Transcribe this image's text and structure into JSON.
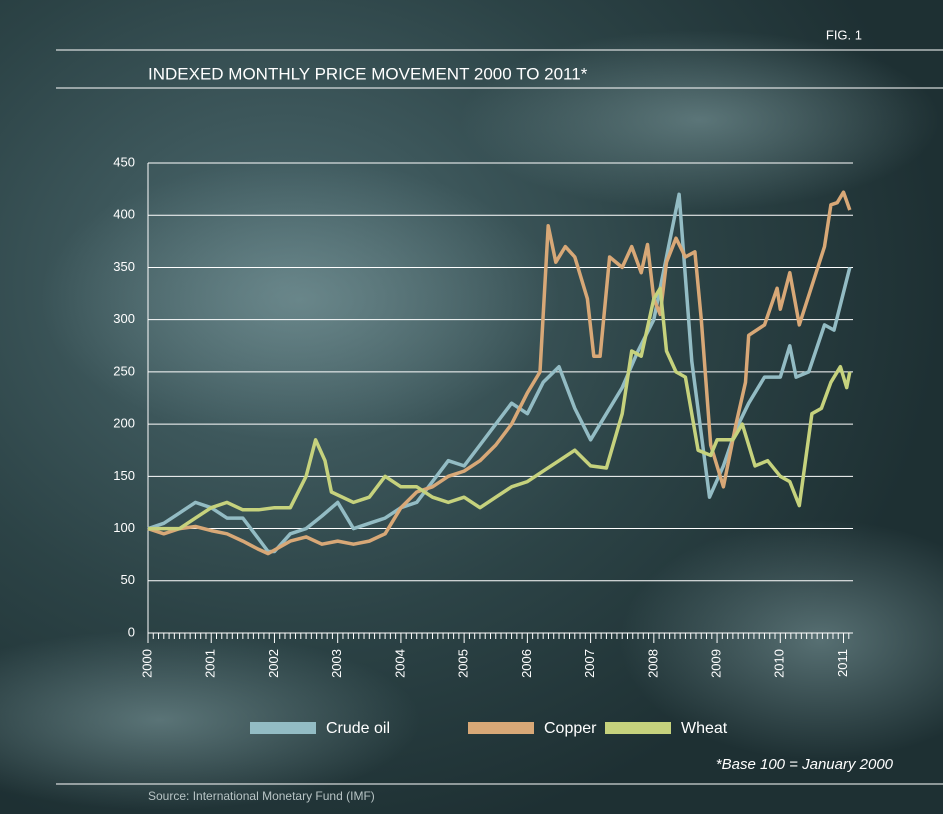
{
  "chart_data": {
    "type": "line",
    "figure_label": "FIG. 1",
    "title": "INDEXED MONTHLY PRICE MOVEMENT 2000 TO 2011*",
    "footnote": "*Base 100 = January 2000",
    "source": "Source: International Monetary Fund (IMF)",
    "xlim": [
      2000,
      2011.15
    ],
    "xticks": [
      2000,
      2001,
      2002,
      2003,
      2004,
      2005,
      2006,
      2007,
      2008,
      2009,
      2010,
      2011
    ],
    "ylim": [
      0,
      450
    ],
    "yticks": [
      0,
      50,
      100,
      150,
      200,
      250,
      300,
      350,
      400,
      450
    ],
    "grid": true,
    "series": [
      {
        "name": "Crude oil",
        "color": "#93bcc4",
        "x": [
          2000,
          2000.25,
          2000.5,
          2000.75,
          2001,
          2001.25,
          2001.5,
          2001.75,
          2001.9,
          2002,
          2002.25,
          2002.5,
          2002.75,
          2003,
          2003.25,
          2003.5,
          2003.75,
          2004,
          2004.25,
          2004.5,
          2004.75,
          2005,
          2005.25,
          2005.5,
          2005.75,
          2006,
          2006.25,
          2006.5,
          2006.75,
          2007,
          2007.25,
          2007.5,
          2007.75,
          2008,
          2008.2,
          2008.4,
          2008.6,
          2008.88,
          2009.1,
          2009.3,
          2009.5,
          2009.75,
          2010,
          2010.15,
          2010.25,
          2010.45,
          2010.7,
          2010.85,
          2011.1
        ],
        "values": [
          100,
          105,
          115,
          125,
          120,
          110,
          110,
          90,
          78,
          78,
          95,
          100,
          112,
          125,
          100,
          105,
          110,
          120,
          125,
          145,
          165,
          160,
          180,
          200,
          220,
          210,
          240,
          255,
          215,
          185,
          210,
          235,
          270,
          300,
          360,
          420,
          260,
          130,
          160,
          195,
          220,
          245,
          245,
          275,
          245,
          250,
          295,
          290,
          350
        ]
      },
      {
        "name": "Copper",
        "color": "#d8a877",
        "x": [
          2000,
          2000.25,
          2000.5,
          2000.75,
          2001,
          2001.25,
          2001.5,
          2001.75,
          2001.9,
          2002.25,
          2002.5,
          2002.75,
          2003,
          2003.25,
          2003.5,
          2003.75,
          2004,
          2004.25,
          2004.5,
          2004.75,
          2005,
          2005.25,
          2005.5,
          2005.75,
          2006,
          2006.2,
          2006.33,
          2006.45,
          2006.6,
          2006.75,
          2006.95,
          2007.05,
          2007.15,
          2007.3,
          2007.5,
          2007.65,
          2007.8,
          2007.9,
          2008,
          2008.1,
          2008.2,
          2008.35,
          2008.5,
          2008.65,
          2008.75,
          2008.9,
          2009.1,
          2009.3,
          2009.45,
          2009.5,
          2009.75,
          2009.95,
          2010,
          2010.15,
          2010.3,
          2010.7,
          2010.8,
          2010.9,
          2011,
          2011.1
        ],
        "values": [
          100,
          95,
          100,
          102,
          98,
          95,
          88,
          80,
          76,
          88,
          92,
          85,
          88,
          85,
          88,
          95,
          120,
          135,
          140,
          150,
          155,
          165,
          180,
          200,
          230,
          250,
          390,
          355,
          370,
          360,
          320,
          265,
          265,
          360,
          350,
          370,
          345,
          372,
          320,
          305,
          355,
          378,
          360,
          365,
          300,
          180,
          140,
          200,
          240,
          285,
          295,
          330,
          310,
          345,
          295,
          370,
          410,
          412,
          422,
          405
        ]
      },
      {
        "name": "Wheat",
        "color": "#c6d27d",
        "x": [
          2000,
          2000.5,
          2000.75,
          2001,
          2001.25,
          2001.5,
          2001.75,
          2002,
          2002.25,
          2002.5,
          2002.65,
          2002.8,
          2002.9,
          2003.25,
          2003.5,
          2003.75,
          2004,
          2004.25,
          2004.5,
          2004.75,
          2005,
          2005.25,
          2005.5,
          2005.75,
          2006,
          2006.25,
          2006.5,
          2006.75,
          2007,
          2007.25,
          2007.5,
          2007.65,
          2007.8,
          2008,
          2008.1,
          2008.2,
          2008.35,
          2008.5,
          2008.7,
          2008.9,
          2009,
          2009.25,
          2009.4,
          2009.6,
          2009.8,
          2010,
          2010.15,
          2010.3,
          2010.5,
          2010.65,
          2010.8,
          2010.95,
          2011.05,
          2011.1
        ],
        "values": [
          100,
          100,
          110,
          120,
          125,
          118,
          118,
          120,
          120,
          150,
          185,
          165,
          135,
          125,
          130,
          150,
          140,
          140,
          130,
          125,
          130,
          120,
          130,
          140,
          145,
          155,
          165,
          175,
          160,
          158,
          210,
          270,
          265,
          320,
          330,
          270,
          250,
          245,
          175,
          170,
          185,
          185,
          200,
          160,
          165,
          150,
          145,
          122,
          210,
          215,
          240,
          255,
          235,
          250
        ]
      }
    ]
  }
}
